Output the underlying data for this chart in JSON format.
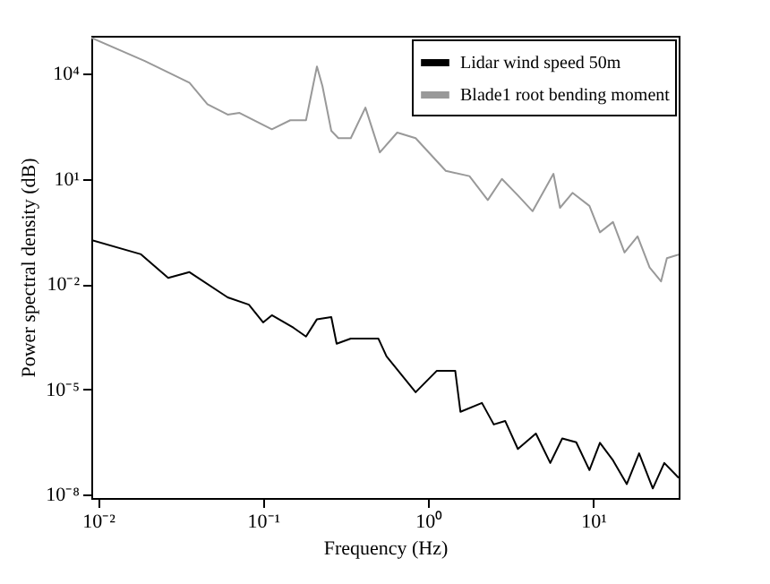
{
  "chart_data": {
    "type": "line",
    "xlabel": "Frequency (Hz)",
    "ylabel": "Power spectral density (dB)",
    "log": "xy",
    "grid": false,
    "legend": "top right",
    "marker": "none",
    "line_style": "solid",
    "xlim": [
      0.0091,
      33
    ],
    "ylim": [
      8e-09,
      120000.0
    ],
    "xticks": [
      {
        "value": 0.01,
        "label": "10⁻²"
      },
      {
        "value": 0.1,
        "label": "10⁻¹"
      },
      {
        "value": 1,
        "label": "10⁰"
      },
      {
        "value": 10,
        "label": "10¹"
      }
    ],
    "yticks": [
      {
        "value": 1e-08,
        "label": "10⁻⁸"
      },
      {
        "value": 1e-05,
        "label": "10⁻⁵"
      },
      {
        "value": 0.01,
        "label": "10⁻²"
      },
      {
        "value": 10,
        "label": "10¹"
      },
      {
        "value": 10000,
        "label": "10⁴"
      }
    ],
    "series": [
      {
        "name": "Lidar wind speed 50m",
        "color": "#000000",
        "x": [
          0.0091,
          0.0182,
          0.0266,
          0.0358,
          0.061,
          0.082,
          0.1,
          0.113,
          0.153,
          0.182,
          0.212,
          0.259,
          0.279,
          0.34,
          0.5,
          0.56,
          0.84,
          1.13,
          1.46,
          1.57,
          2.12,
          2.5,
          2.93,
          3.5,
          4.5,
          5.5,
          6.5,
          7.9,
          9.5,
          11,
          13.2,
          16,
          19,
          23,
          27,
          33
        ],
        "values": [
          0.18,
          0.071,
          0.015,
          0.022,
          0.0042,
          0.0026,
          0.00081,
          0.0013,
          0.00057,
          0.00032,
          0.001,
          0.00115,
          0.0002,
          0.00028,
          0.00028,
          8.7e-05,
          8.3e-06,
          3.4e-05,
          3.4e-05,
          2.3e-06,
          4.1e-06,
          1e-06,
          1.26e-06,
          2e-07,
          5.5e-07,
          8e-08,
          4e-07,
          3.1e-07,
          5e-08,
          3e-07,
          9.5e-08,
          2e-08,
          1.5e-07,
          1.5e-08,
          8e-08,
          3e-08
        ]
      },
      {
        "name": "Blade1 root bending moment",
        "color": "#999999",
        "x": [
          0.0091,
          0.0192,
          0.0358,
          0.046,
          0.061,
          0.072,
          0.113,
          0.146,
          0.182,
          0.212,
          0.229,
          0.259,
          0.286,
          0.34,
          0.417,
          0.51,
          0.65,
          0.84,
          1.28,
          1.78,
          2.3,
          2.8,
          3.5,
          4.3,
          5.2,
          5.75,
          6.3,
          7.5,
          9.5,
          11,
          13.2,
          15.5,
          18.6,
          22,
          25.8,
          28,
          33
        ],
        "values": [
          105000,
          23000,
          5500,
          1350,
          680,
          760,
          260,
          470,
          470,
          16000,
          4400,
          235,
          145,
          145,
          1080,
          57,
          210,
          145,
          17,
          12,
          2.5,
          10,
          3.4,
          1.2,
          6,
          14,
          1.5,
          4,
          1.7,
          0.3,
          0.59,
          0.08,
          0.23,
          0.03,
          0.012,
          0.055,
          0.07
        ]
      }
    ]
  }
}
